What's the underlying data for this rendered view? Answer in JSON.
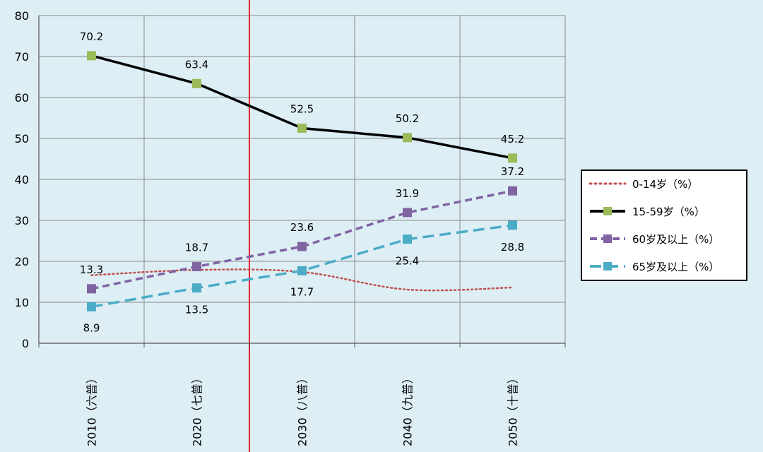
{
  "chart_data": {
    "type": "line",
    "title": "",
    "xlabel": "",
    "ylabel": "",
    "ylim": [
      0,
      80
    ],
    "yticks": [
      "0",
      "10",
      "20",
      "30",
      "40",
      "50",
      "60",
      "70",
      "80"
    ],
    "categories": [
      "2010（六普）",
      "2020（七普）",
      "2030（八普）",
      "2040（九普）",
      "2050（十普）"
    ],
    "grid": true,
    "divider_after_category": 1,
    "legend_position": "right",
    "series": [
      {
        "name": "0-14岁（%）",
        "values": [
          16.6,
          17.9,
          17.4,
          13.1,
          13.6
        ],
        "labels": [],
        "color": "#c0504d",
        "style": "dotted",
        "marker": "none"
      },
      {
        "name": "15-59岁（%）",
        "values": [
          70.2,
          63.4,
          52.5,
          50.2,
          45.2
        ],
        "labels": [
          "70.2",
          "63.4",
          "52.5",
          "50.2",
          "45.2"
        ],
        "color": "#000000",
        "marker_color": "#9bbb59",
        "style": "solid",
        "marker": "square"
      },
      {
        "name": "60岁及以上（%）",
        "values": [
          13.3,
          18.7,
          23.6,
          31.9,
          37.2
        ],
        "labels": [
          "13.3",
          "18.7",
          "23.6",
          "31.9",
          "37.2"
        ],
        "color": "#8064a2",
        "style": "dashed",
        "marker": "square"
      },
      {
        "name": "65岁及以上（%）",
        "values": [
          8.9,
          13.5,
          17.7,
          25.4,
          28.8
        ],
        "labels": [
          "8.9",
          "13.5",
          "17.7",
          "25.4",
          "28.8"
        ],
        "color": "#4bacc6",
        "style": "longdash",
        "marker": "square"
      }
    ]
  }
}
